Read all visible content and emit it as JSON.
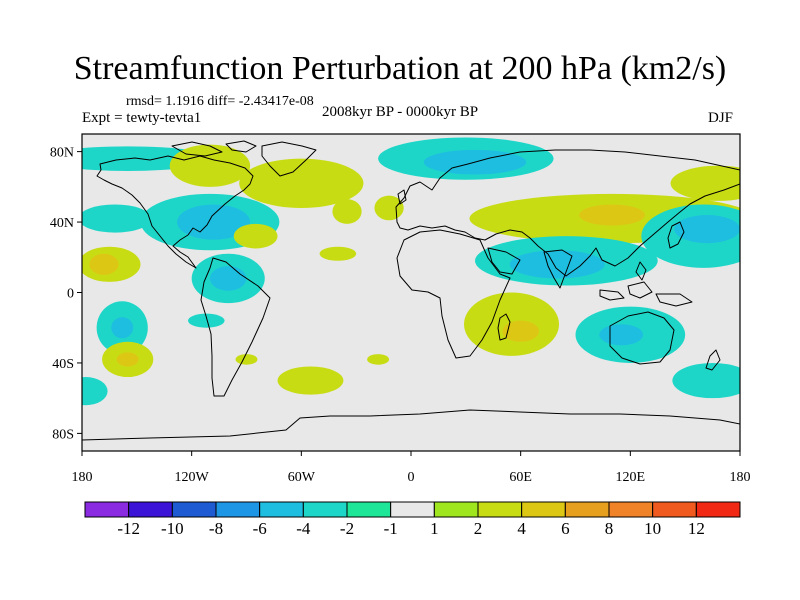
{
  "chart_data": {
    "type": "heatmap",
    "title": "Streamfunction Perturbation at 200 hPa (km2/s)",
    "stats_line": "rmsd= 1.1916 diff= -2.43417e-08",
    "left_label": "Expt = tewty-tevta1",
    "center_label": "2008kyr BP - 0000kyr BP",
    "right_label": "DJF",
    "projection": "cylindrical-equidistant",
    "lon_range": [
      -180,
      180
    ],
    "lat_range": [
      -90,
      90
    ],
    "x_ticks": [
      {
        "lon": -180,
        "label": "180"
      },
      {
        "lon": -120,
        "label": "120W"
      },
      {
        "lon": -60,
        "label": "60W"
      },
      {
        "lon": 0,
        "label": "0"
      },
      {
        "lon": 60,
        "label": "60E"
      },
      {
        "lon": 120,
        "label": "120E"
      },
      {
        "lon": 180,
        "label": "180"
      }
    ],
    "y_ticks": [
      {
        "lat": 80,
        "label": "80N"
      },
      {
        "lat": 40,
        "label": "40N"
      },
      {
        "lat": 0,
        "label": "0"
      },
      {
        "lat": -40,
        "label": "40S"
      },
      {
        "lat": -80,
        "label": "80S"
      }
    ],
    "colorbar": {
      "colors": [
        "#8a2be2",
        "#3c14d8",
        "#1e5ad2",
        "#1e96e6",
        "#1ebee0",
        "#1ed6c8",
        "#1ee698",
        "#e8e8e8",
        "#a0e61e",
        "#c8dc14",
        "#dcc814",
        "#e6a01e",
        "#f08228",
        "#f05a1e",
        "#f02814"
      ],
      "labels": [
        "-12",
        "-10",
        "-8",
        "-6",
        "-4",
        "-2",
        "-1",
        "1",
        "2",
        "4",
        "6",
        "8",
        "10",
        "12"
      ]
    },
    "anomalies": [
      {
        "lon": -155,
        "lat": 76,
        "rlon": 48,
        "rlat": 7,
        "level": "-2"
      },
      {
        "lon": -110,
        "lat": 72,
        "rlon": 22,
        "rlat": 12,
        "level": "2"
      },
      {
        "lon": -60,
        "lat": 62,
        "rlon": 34,
        "rlat": 14,
        "level": "2"
      },
      {
        "lon": -110,
        "lat": 40,
        "rlon": 38,
        "rlat": 16,
        "level": "-2"
      },
      {
        "lon": -108,
        "lat": 40,
        "rlon": 20,
        "rlat": 10,
        "level": "-4"
      },
      {
        "lon": -162,
        "lat": 42,
        "rlon": 20,
        "rlat": 8,
        "level": "-2"
      },
      {
        "lon": -165,
        "lat": 16,
        "rlon": 17,
        "rlat": 10,
        "level": "2"
      },
      {
        "lon": -168,
        "lat": 16,
        "rlon": 8,
        "rlat": 6,
        "level": "4"
      },
      {
        "lon": -100,
        "lat": 8,
        "rlon": 20,
        "rlat": 14,
        "level": "-2"
      },
      {
        "lon": -100,
        "lat": 8,
        "rlon": 10,
        "rlat": 7,
        "level": "-4"
      },
      {
        "lon": -85,
        "lat": 32,
        "rlon": 12,
        "rlat": 7,
        "level": "2"
      },
      {
        "lon": -40,
        "lat": 22,
        "rlon": 10,
        "rlat": 4,
        "level": "2"
      },
      {
        "lon": -35,
        "lat": 46,
        "rlon": 8,
        "rlat": 7,
        "level": "2"
      },
      {
        "lon": -158,
        "lat": -20,
        "rlon": 14,
        "rlat": 15,
        "level": "-2"
      },
      {
        "lon": -158,
        "lat": -20,
        "rlon": 6,
        "rlat": 6,
        "level": "-4"
      },
      {
        "lon": -112,
        "lat": -16,
        "rlon": 10,
        "rlat": 4,
        "level": "-2"
      },
      {
        "lon": -155,
        "lat": -38,
        "rlon": 14,
        "rlat": 10,
        "level": "2"
      },
      {
        "lon": -155,
        "lat": -38,
        "rlon": 6,
        "rlat": 4,
        "level": "4"
      },
      {
        "lon": -178,
        "lat": -56,
        "rlon": 12,
        "rlat": 8,
        "level": "-2"
      },
      {
        "lon": -55,
        "lat": -50,
        "rlon": 18,
        "rlat": 8,
        "level": "2"
      },
      {
        "lon": -90,
        "lat": -38,
        "rlon": 6,
        "rlat": 3,
        "level": "2"
      },
      {
        "lon": -18,
        "lat": -38,
        "rlon": 6,
        "rlat": 3,
        "level": "2"
      },
      {
        "lon": 30,
        "lat": 76,
        "rlon": 48,
        "rlat": 12,
        "level": "-2"
      },
      {
        "lon": 35,
        "lat": 74,
        "rlon": 28,
        "rlat": 7,
        "level": "-4"
      },
      {
        "lon": -12,
        "lat": 48,
        "rlon": 8,
        "rlat": 7,
        "level": "2"
      },
      {
        "lon": 110,
        "lat": 42,
        "rlon": 78,
        "rlat": 14,
        "level": "2"
      },
      {
        "lon": 110,
        "lat": 44,
        "rlon": 18,
        "rlat": 6,
        "level": "4"
      },
      {
        "lon": 168,
        "lat": 62,
        "rlon": 26,
        "rlat": 10,
        "level": "2"
      },
      {
        "lon": 160,
        "lat": 32,
        "rlon": 34,
        "rlat": 18,
        "level": "-2"
      },
      {
        "lon": 162,
        "lat": 36,
        "rlon": 18,
        "rlat": 8,
        "level": "-4"
      },
      {
        "lon": 85,
        "lat": 18,
        "rlon": 50,
        "rlat": 14,
        "level": "-2"
      },
      {
        "lon": 80,
        "lat": 16,
        "rlon": 26,
        "rlat": 8,
        "level": "-4"
      },
      {
        "lon": 55,
        "lat": -18,
        "rlon": 26,
        "rlat": 18,
        "level": "2"
      },
      {
        "lon": 60,
        "lat": -22,
        "rlon": 10,
        "rlat": 6,
        "level": "4"
      },
      {
        "lon": 120,
        "lat": -24,
        "rlon": 30,
        "rlat": 16,
        "level": "-2"
      },
      {
        "lon": 115,
        "lat": -24,
        "rlon": 12,
        "rlat": 6,
        "level": "-4"
      },
      {
        "lon": 165,
        "lat": -50,
        "rlon": 22,
        "rlat": 10,
        "level": "-2"
      }
    ]
  }
}
